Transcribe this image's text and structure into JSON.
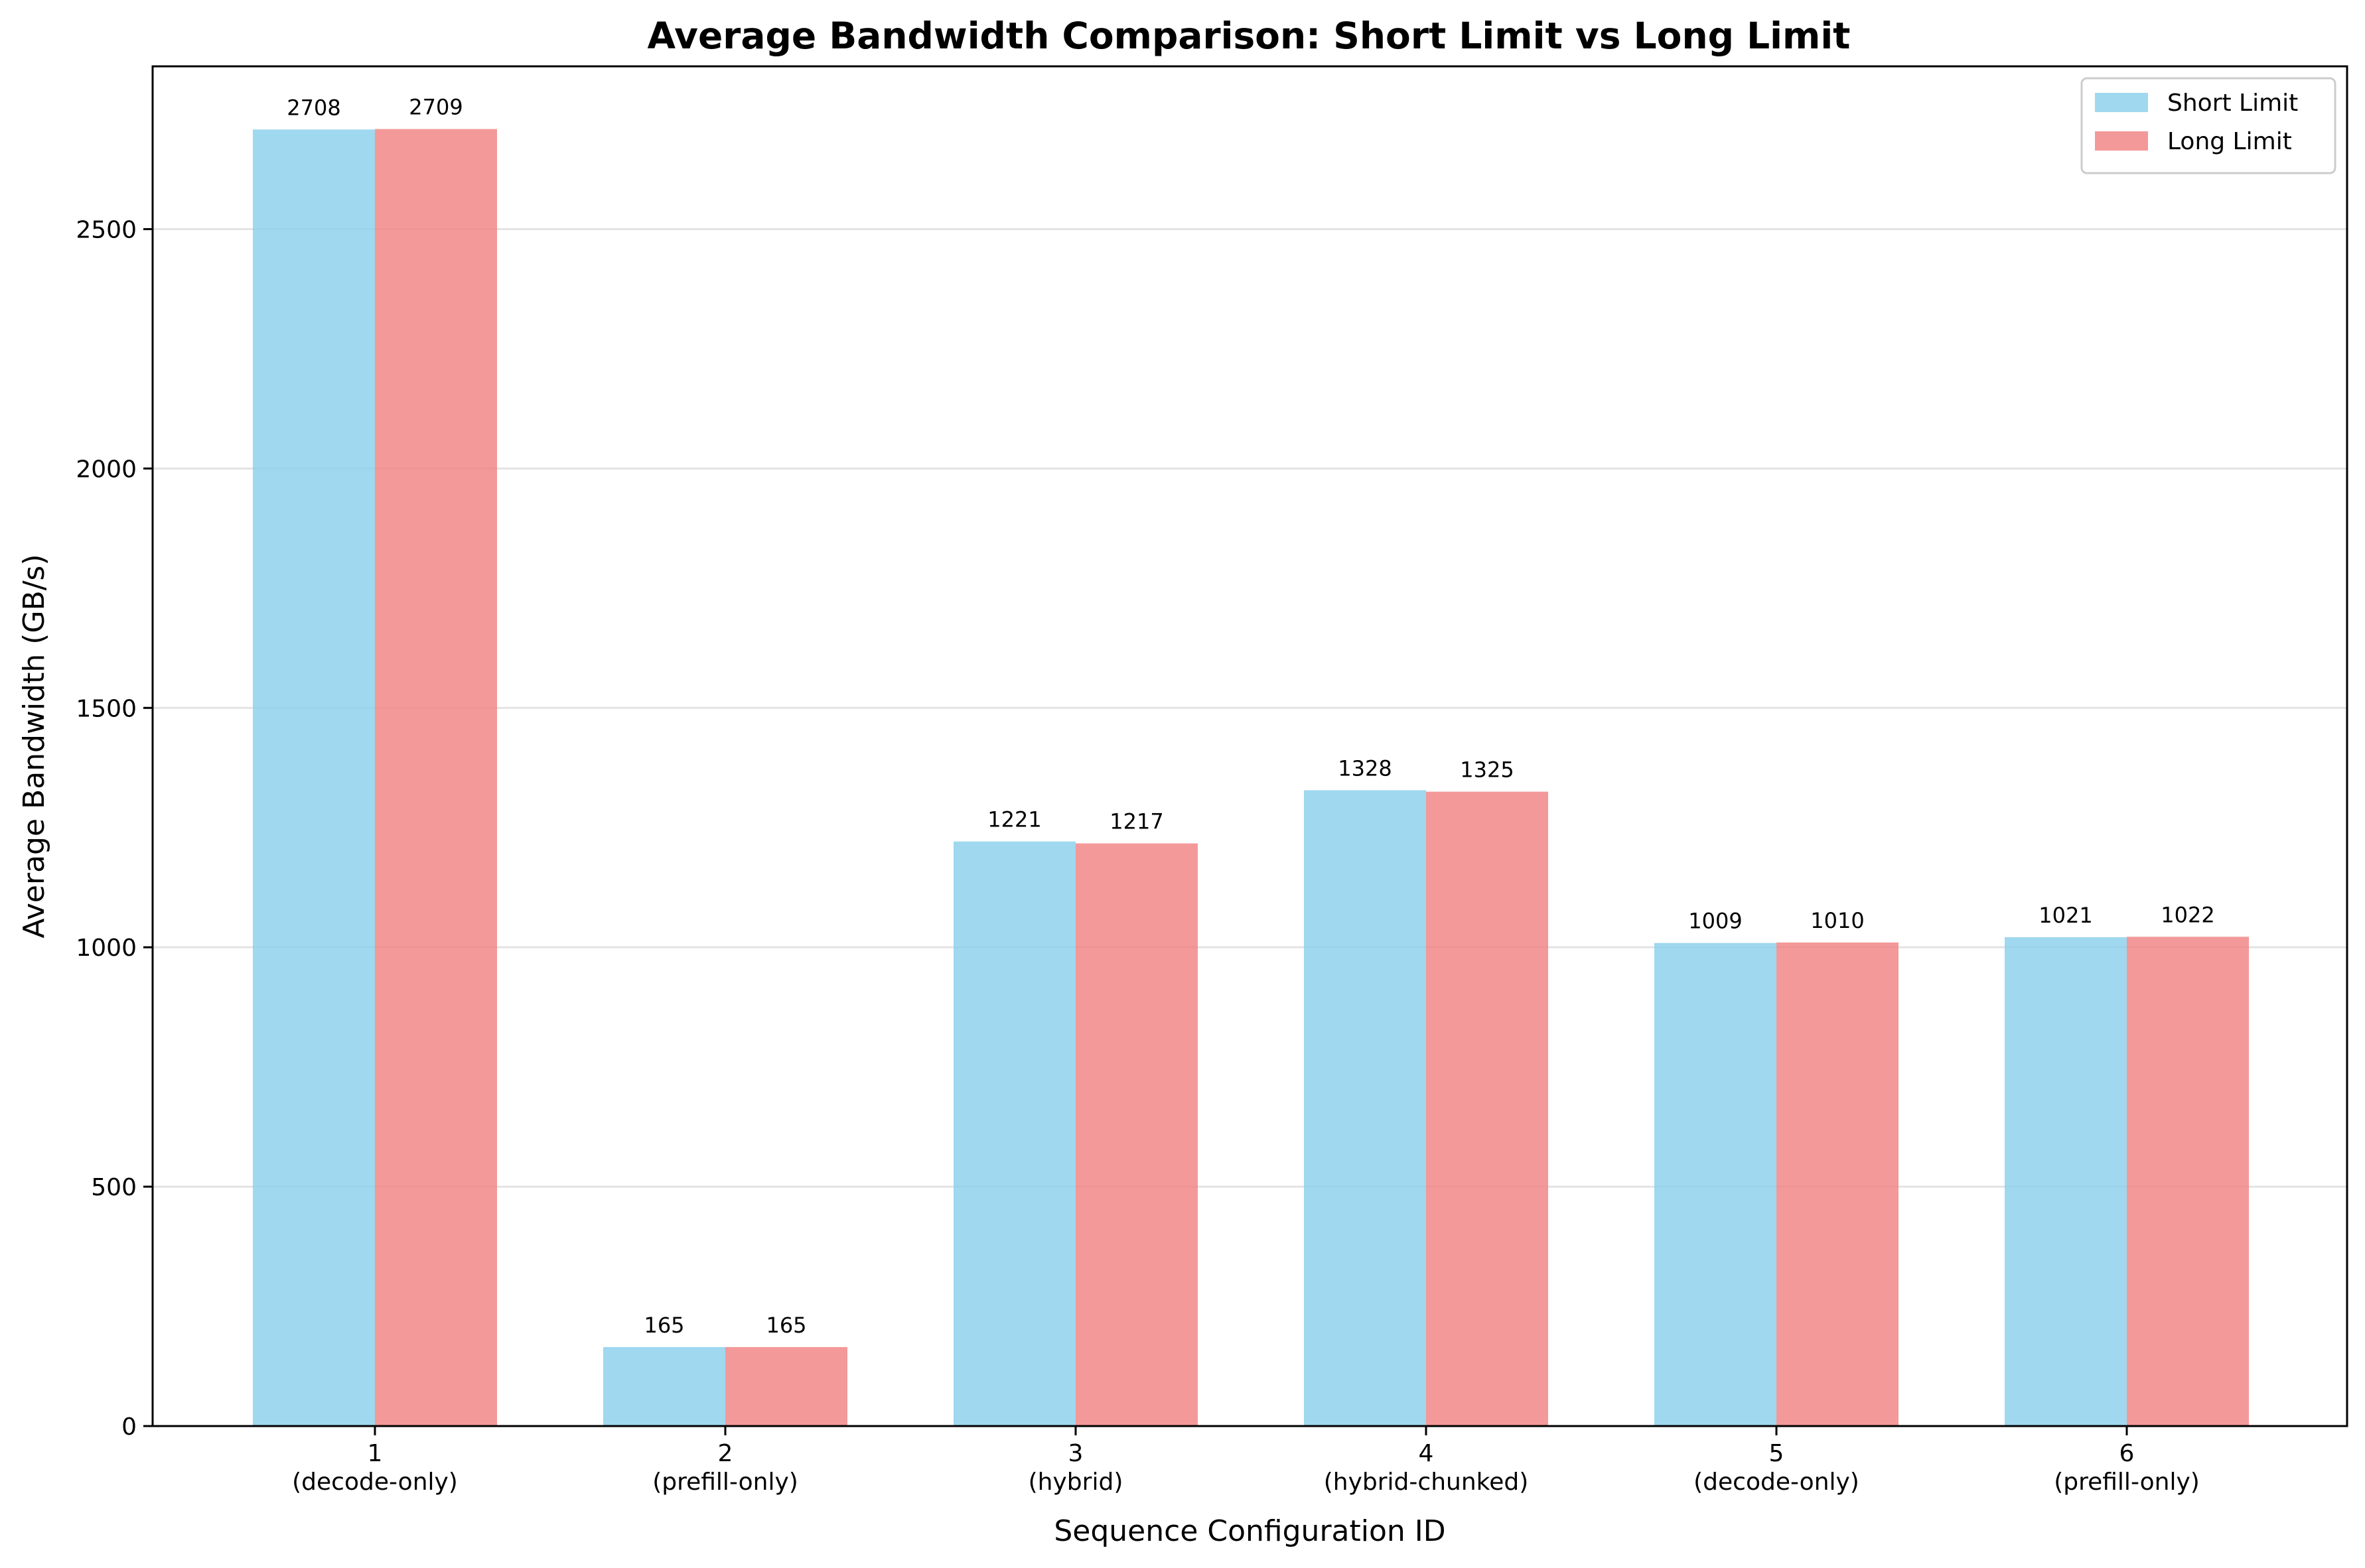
{
  "chart_data": {
    "type": "bar",
    "title": "Average Bandwidth Comparison: Short Limit vs Long Limit",
    "xlabel": "Sequence Configuration ID",
    "ylabel": "Average Bandwidth (GB/s)",
    "ylim": [
      0,
      2840
    ],
    "yticks": [
      0,
      500,
      1000,
      1500,
      2000,
      2500
    ],
    "grid": "y",
    "legend": "top-right",
    "categories": [
      "1",
      "2",
      "3",
      "4",
      "5",
      "6"
    ],
    "category_sublabels": [
      "(decode-only)",
      "(prefill-only)",
      "(hybrid)",
      "(hybrid-chunked)",
      "(decode-only)",
      "(prefill-only)"
    ],
    "series": [
      {
        "name": "Short Limit",
        "color": "#87CEEB",
        "values": [
          2708,
          165,
          1221,
          1328,
          1009,
          1021
        ]
      },
      {
        "name": "Long Limit",
        "color": "#F08080",
        "values": [
          2709,
          165,
          1217,
          1325,
          1010,
          1022
        ]
      }
    ]
  }
}
